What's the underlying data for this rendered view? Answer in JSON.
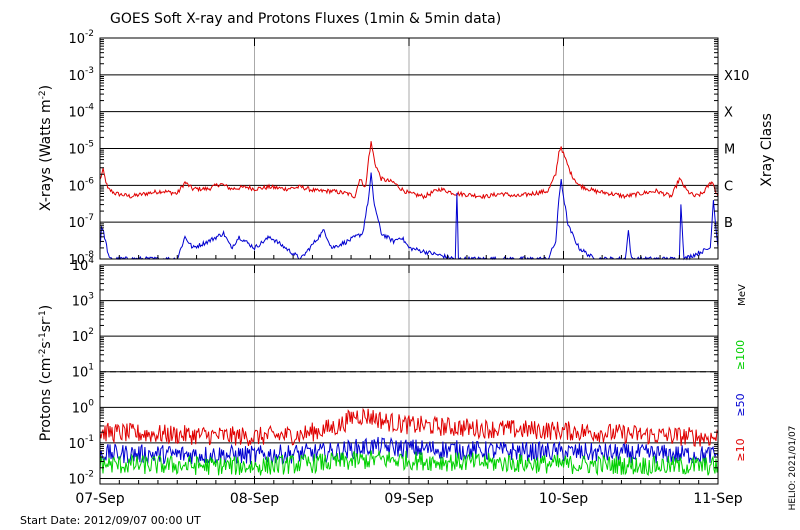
{
  "title": "GOES Soft X-ray and Protons Fluxes   (1min & 5min data)",
  "start_date": "Start Date: 2012/09/07 00:00 UT",
  "credit": "HELIO: 2021/01/07",
  "colors": {
    "red": "#e00000",
    "blue": "#0000d0",
    "green": "#00d000",
    "grid": "#000000",
    "vgrid": "#aaaaaa"
  },
  "chart_data": [
    {
      "type": "line",
      "panel": "xray",
      "ylabel": "X-rays (Watts m^-2)",
      "ylabel_parts": [
        "X-rays (Watts m",
        "-2",
        ")"
      ],
      "yscale": "log",
      "ylim": [
        1e-08,
        0.01
      ],
      "yticks": [
        {
          "base": "10",
          "exp": "-8"
        },
        {
          "base": "10",
          "exp": "-7"
        },
        {
          "base": "10",
          "exp": "-6"
        },
        {
          "base": "10",
          "exp": "-5"
        },
        {
          "base": "10",
          "exp": "-4"
        },
        {
          "base": "10",
          "exp": "-3"
        },
        {
          "base": "10",
          "exp": "-2"
        }
      ],
      "right_axis_title": "Xray Class",
      "right_labels": [
        {
          "text": "B",
          "value": 1e-07
        },
        {
          "text": "C",
          "value": 1e-06
        },
        {
          "text": "M",
          "value": 1e-05
        },
        {
          "text": "X",
          "value": 0.0001
        },
        {
          "text": "X10",
          "value": 0.001
        }
      ],
      "xticks": [
        "07-Sep",
        "08-Sep",
        "09-Sep",
        "10-Sep",
        "11-Sep"
      ],
      "xlim_days": [
        0,
        4
      ],
      "series": [
        {
          "name": "",
          "color": "#e00000",
          "points": [
            [
              0,
              1.4e-06
            ],
            [
              0.02,
              2.6e-06
            ],
            [
              0.05,
              8e-07
            ],
            [
              0.1,
              6e-07
            ],
            [
              0.2,
              5e-07
            ],
            [
              0.3,
              6e-07
            ],
            [
              0.4,
              7e-07
            ],
            [
              0.5,
              6e-07
            ],
            [
              0.55,
              1.2e-06
            ],
            [
              0.6,
              8e-07
            ],
            [
              0.7,
              8e-07
            ],
            [
              0.78,
              1.1e-06
            ],
            [
              0.85,
              8e-07
            ],
            [
              0.95,
              9e-07
            ],
            [
              1.0,
              8e-07
            ],
            [
              1.1,
              9e-07
            ],
            [
              1.2,
              8e-07
            ],
            [
              1.3,
              9e-07
            ],
            [
              1.4,
              7e-07
            ],
            [
              1.5,
              7e-07
            ],
            [
              1.6,
              6e-07
            ],
            [
              1.65,
              5e-07
            ],
            [
              1.68,
              1.5e-06
            ],
            [
              1.72,
              9e-07
            ],
            [
              1.74,
              6e-06
            ],
            [
              1.755,
              1.45e-05
            ],
            [
              1.78,
              4e-06
            ],
            [
              1.82,
              1.5e-06
            ],
            [
              1.9,
              1.2e-06
            ],
            [
              1.95,
              8e-07
            ],
            [
              2.0,
              6e-07
            ],
            [
              2.1,
              5e-07
            ],
            [
              2.2,
              8e-07
            ],
            [
              2.3,
              6e-07
            ],
            [
              2.5,
              5e-07
            ],
            [
              2.6,
              6e-07
            ],
            [
              2.7,
              5e-07
            ],
            [
              2.8,
              6e-07
            ],
            [
              2.9,
              7e-07
            ],
            [
              2.95,
              2e-06
            ],
            [
              2.97,
              8e-06
            ],
            [
              2.985,
              1.15e-05
            ],
            [
              3.0,
              7e-06
            ],
            [
              3.05,
              2e-06
            ],
            [
              3.1,
              1e-06
            ],
            [
              3.2,
              7e-07
            ],
            [
              3.3,
              6e-07
            ],
            [
              3.4,
              5e-07
            ],
            [
              3.5,
              6e-07
            ],
            [
              3.6,
              7e-07
            ],
            [
              3.7,
              5e-07
            ],
            [
              3.75,
              1.5e-06
            ],
            [
              3.8,
              7e-07
            ],
            [
              3.85,
              5e-07
            ],
            [
              3.9,
              6e-07
            ],
            [
              3.96,
              1.3e-06
            ],
            [
              4.0,
              5e-07
            ]
          ]
        },
        {
          "name": "",
          "color": "#0000d0",
          "points": [
            [
              0,
              2e-08
            ],
            [
              0.01,
              8e-08
            ],
            [
              0.03,
              4e-08
            ],
            [
              0.06,
              1e-08
            ],
            [
              0.5,
              1e-08
            ],
            [
              0.55,
              4e-08
            ],
            [
              0.6,
              2e-08
            ],
            [
              0.7,
              3e-08
            ],
            [
              0.8,
              5e-08
            ],
            [
              0.85,
              2e-08
            ],
            [
              0.9,
              4e-08
            ],
            [
              1.0,
              2e-08
            ],
            [
              1.1,
              4e-08
            ],
            [
              1.2,
              2e-08
            ],
            [
              1.3,
              1e-08
            ],
            [
              1.45,
              6e-08
            ],
            [
              1.5,
              2e-08
            ],
            [
              1.6,
              3e-08
            ],
            [
              1.7,
              5e-08
            ],
            [
              1.74,
              5e-07
            ],
            [
              1.755,
              2.1e-06
            ],
            [
              1.77,
              4e-07
            ],
            [
              1.82,
              5e-08
            ],
            [
              1.9,
              3e-08
            ],
            [
              1.95,
              4e-08
            ],
            [
              2.0,
              2e-08
            ],
            [
              2.3,
              1e-08
            ],
            [
              2.31,
              6e-07
            ],
            [
              2.32,
              1e-08
            ],
            [
              2.9,
              1e-08
            ],
            [
              2.95,
              3e-08
            ],
            [
              2.97,
              4e-07
            ],
            [
              2.985,
              1.5e-06
            ],
            [
              3.0,
              5e-07
            ],
            [
              3.03,
              8e-08
            ],
            [
              3.1,
              2e-08
            ],
            [
              3.2,
              1e-08
            ],
            [
              3.4,
              1e-08
            ],
            [
              3.42,
              6e-08
            ],
            [
              3.44,
              1e-08
            ],
            [
              3.75,
              1e-08
            ],
            [
              3.76,
              3e-07
            ],
            [
              3.78,
              1e-08
            ],
            [
              3.95,
              2e-08
            ],
            [
              3.97,
              4e-07
            ],
            [
              4.0,
              2e-08
            ]
          ]
        }
      ]
    },
    {
      "type": "line",
      "panel": "protons",
      "ylabel": "Protons (cm^-2 s^-1 sr^-1)",
      "ylabel_parts": [
        "Protons (cm",
        "-2",
        "s",
        "-1",
        "sr",
        "-1",
        ")"
      ],
      "yscale": "log",
      "ylim": [
        0.007,
        10000
      ],
      "yticks": [
        {
          "base": "10",
          "exp": "-2"
        },
        {
          "base": "10",
          "exp": "-1"
        },
        {
          "base": "10",
          "exp": "0"
        },
        {
          "base": "10",
          "exp": "1"
        },
        {
          "base": "10",
          "exp": "2"
        },
        {
          "base": "10",
          "exp": "3"
        },
        {
          "base": "10",
          "exp": "4"
        }
      ],
      "threshold": 10,
      "right_unit": "MeV",
      "xticks": [
        "07-Sep",
        "08-Sep",
        "09-Sep",
        "10-Sep",
        "11-Sep"
      ],
      "xlim_days": [
        0,
        4
      ],
      "series": [
        {
          "name": "≥10",
          "color": "#e00000",
          "baseline": [
            [
              0,
              0.2
            ],
            [
              0.5,
              0.17
            ],
            [
              1.0,
              0.15
            ],
            [
              1.3,
              0.17
            ],
            [
              1.55,
              0.3
            ],
            [
              1.65,
              0.6
            ],
            [
              1.75,
              0.55
            ],
            [
              1.85,
              0.4
            ],
            [
              2.0,
              0.32
            ],
            [
              2.5,
              0.25
            ],
            [
              3.0,
              0.22
            ],
            [
              3.5,
              0.17
            ],
            [
              4.0,
              0.14
            ]
          ]
        },
        {
          "name": "≥50",
          "color": "#0000d0",
          "baseline": [
            [
              0,
              0.05
            ],
            [
              1.0,
              0.045
            ],
            [
              1.5,
              0.055
            ],
            [
              1.75,
              0.08
            ],
            [
              2.0,
              0.07
            ],
            [
              2.5,
              0.06
            ],
            [
              3.0,
              0.055
            ],
            [
              4.0,
              0.045
            ]
          ]
        },
        {
          "name": "≥100",
          "color": "#00d000",
          "baseline": [
            [
              0,
              0.025
            ],
            [
              1.0,
              0.022
            ],
            [
              1.6,
              0.03
            ],
            [
              1.8,
              0.035
            ],
            [
              2.2,
              0.03
            ],
            [
              3.0,
              0.025
            ],
            [
              4.0,
              0.022
            ]
          ]
        }
      ]
    }
  ]
}
